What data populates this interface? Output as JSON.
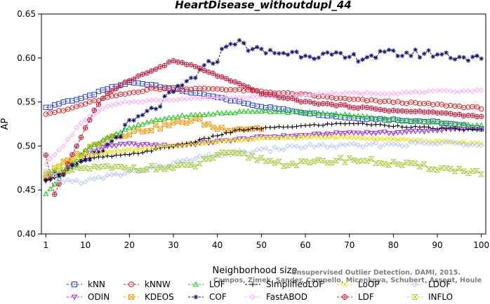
{
  "chart_data": {
    "type": "line",
    "title": "HeartDisease_withoutdupl_44",
    "xlabel": "Neighborhood size",
    "ylabel": "AP",
    "xlim": [
      0,
      101
    ],
    "ylim": [
      0.4,
      0.65
    ],
    "xticks": [
      1,
      10,
      20,
      30,
      40,
      50,
      60,
      70,
      80,
      90,
      100
    ],
    "yticks": [
      0.4,
      0.45,
      0.5,
      0.55,
      0.6,
      0.65
    ],
    "ytick_labels": [
      "0.40",
      "0.45",
      "0.50",
      "0.55",
      "0.60",
      "0.65"
    ],
    "legend_position": "bottom",
    "credit": "Campos, Zimek, Sander, Campello, Micenkova, Schubert, Assent, Houle: Unsupervised Outlier Detection. DAMI, 2015.",
    "credit_lines": [
      "Unsupervised Outlier Detection. DAMI, 2015.",
      "Campos, Zimek, Sander, Campello, Micenkova, Schubert, Assent, Houle"
    ],
    "series": [
      {
        "name": "kNN",
        "color": "#1f3fd6",
        "marker": "square",
        "knots": [
          [
            1,
            0.543
          ],
          [
            5,
            0.55
          ],
          [
            10,
            0.555
          ],
          [
            15,
            0.565
          ],
          [
            20,
            0.572
          ],
          [
            25,
            0.57
          ],
          [
            30,
            0.565
          ],
          [
            40,
            0.555
          ],
          [
            50,
            0.545
          ],
          [
            60,
            0.538
          ],
          [
            70,
            0.532
          ],
          [
            80,
            0.53
          ],
          [
            90,
            0.527
          ],
          [
            100,
            0.52
          ]
        ]
      },
      {
        "name": "ODIN",
        "color": "#9a28d8",
        "marker": "triangle-down",
        "knots": [
          [
            1,
            0.46
          ],
          [
            5,
            0.47
          ],
          [
            10,
            0.49
          ],
          [
            15,
            0.5
          ],
          [
            20,
            0.502
          ],
          [
            30,
            0.5
          ],
          [
            40,
            0.505
          ],
          [
            50,
            0.51
          ],
          [
            60,
            0.512
          ],
          [
            70,
            0.515
          ],
          [
            80,
            0.515
          ],
          [
            90,
            0.518
          ],
          [
            100,
            0.52
          ]
        ]
      },
      {
        "name": "kNNW",
        "color": "#e02020",
        "marker": "circle",
        "knots": [
          [
            1,
            0.537
          ],
          [
            5,
            0.54
          ],
          [
            10,
            0.548
          ],
          [
            15,
            0.555
          ],
          [
            20,
            0.56
          ],
          [
            25,
            0.565
          ],
          [
            30,
            0.565
          ],
          [
            40,
            0.565
          ],
          [
            50,
            0.562
          ],
          [
            60,
            0.558
          ],
          [
            70,
            0.553
          ],
          [
            80,
            0.55
          ],
          [
            90,
            0.547
          ],
          [
            100,
            0.543
          ]
        ]
      },
      {
        "name": "KDEOS",
        "color": "#f0a020",
        "marker": "square-x",
        "knots": [
          [
            1,
            0.465
          ],
          [
            5,
            0.48
          ],
          [
            10,
            0.495
          ],
          [
            15,
            0.51
          ],
          [
            20,
            0.515
          ],
          [
            25,
            0.52
          ],
          [
            30,
            0.525
          ],
          [
            35,
            0.53
          ],
          [
            40,
            0.52
          ],
          [
            45,
            0.52
          ],
          [
            50,
            0.52
          ]
        ]
      },
      {
        "name": "LOF",
        "color": "#22c422",
        "marker": "triangle",
        "knots": [
          [
            1,
            0.445
          ],
          [
            5,
            0.47
          ],
          [
            10,
            0.495
          ],
          [
            15,
            0.51
          ],
          [
            20,
            0.52
          ],
          [
            25,
            0.528
          ],
          [
            30,
            0.533
          ],
          [
            40,
            0.537
          ],
          [
            50,
            0.54
          ],
          [
            60,
            0.538
          ],
          [
            70,
            0.535
          ],
          [
            80,
            0.53
          ],
          [
            90,
            0.527
          ],
          [
            100,
            0.523
          ]
        ]
      },
      {
        "name": "COF",
        "color": "#101070",
        "marker": "asterisk",
        "knots": [
          [
            1,
            0.465
          ],
          [
            5,
            0.47
          ],
          [
            10,
            0.48
          ],
          [
            15,
            0.5
          ],
          [
            20,
            0.525
          ],
          [
            25,
            0.54
          ],
          [
            30,
            0.56
          ],
          [
            35,
            0.58
          ],
          [
            40,
            0.6
          ],
          [
            43,
            0.62
          ],
          [
            50,
            0.607
          ],
          [
            60,
            0.605
          ],
          [
            70,
            0.6
          ],
          [
            80,
            0.605
          ],
          [
            90,
            0.605
          ],
          [
            100,
            0.598
          ]
        ]
      },
      {
        "name": "SimplifiedLOF",
        "color": "#000000",
        "marker": "plus",
        "knots": [
          [
            1,
            0.46
          ],
          [
            5,
            0.47
          ],
          [
            10,
            0.485
          ],
          [
            15,
            0.488
          ],
          [
            20,
            0.49
          ],
          [
            25,
            0.495
          ],
          [
            30,
            0.5
          ],
          [
            35,
            0.505
          ],
          [
            40,
            0.512
          ],
          [
            45,
            0.518
          ],
          [
            50,
            0.52
          ],
          [
            60,
            0.523
          ],
          [
            70,
            0.526
          ],
          [
            80,
            0.523
          ],
          [
            90,
            0.52
          ],
          [
            100,
            0.518
          ]
        ]
      },
      {
        "name": "FastABOD",
        "color": "#f4b0f0",
        "marker": "diamond",
        "knots": [
          [
            1,
            0.48
          ],
          [
            5,
            0.5
          ],
          [
            8,
            0.52
          ],
          [
            10,
            0.53
          ],
          [
            15,
            0.545
          ],
          [
            20,
            0.55
          ],
          [
            30,
            0.553
          ],
          [
            40,
            0.555
          ],
          [
            50,
            0.556
          ],
          [
            60,
            0.558
          ],
          [
            70,
            0.56
          ],
          [
            80,
            0.56
          ],
          [
            90,
            0.562
          ],
          [
            100,
            0.563
          ]
        ]
      },
      {
        "name": "LoOP",
        "color": "#e8e000",
        "marker": "x",
        "knots": [
          [
            1,
            0.47
          ],
          [
            5,
            0.48
          ],
          [
            10,
            0.49
          ],
          [
            20,
            0.495
          ],
          [
            30,
            0.5
          ],
          [
            40,
            0.505
          ],
          [
            50,
            0.508
          ],
          [
            60,
            0.51
          ],
          [
            70,
            0.51
          ],
          [
            80,
            0.508
          ],
          [
            90,
            0.505
          ],
          [
            100,
            0.503
          ]
        ]
      },
      {
        "name": "LDF",
        "color": "#c02040",
        "marker": "circle-plus",
        "knots": [
          [
            1,
            0.49
          ],
          [
            3,
            0.445
          ],
          [
            5,
            0.47
          ],
          [
            8,
            0.5
          ],
          [
            10,
            0.52
          ],
          [
            12,
            0.54
          ],
          [
            15,
            0.56
          ],
          [
            20,
            0.575
          ],
          [
            25,
            0.585
          ],
          [
            30,
            0.597
          ],
          [
            35,
            0.59
          ],
          [
            40,
            0.58
          ],
          [
            45,
            0.57
          ],
          [
            50,
            0.56
          ],
          [
            60,
            0.55
          ],
          [
            70,
            0.545
          ],
          [
            80,
            0.54
          ],
          [
            90,
            0.538
          ],
          [
            100,
            0.533
          ]
        ]
      },
      {
        "name": "LDOF",
        "color": "#b8c8f0",
        "marker": "diamond",
        "knots": [
          [
            1,
            0.47
          ],
          [
            5,
            0.46
          ],
          [
            10,
            0.46
          ],
          [
            20,
            0.47
          ],
          [
            30,
            0.48
          ],
          [
            40,
            0.49
          ],
          [
            50,
            0.495
          ],
          [
            60,
            0.5
          ],
          [
            70,
            0.5
          ],
          [
            80,
            0.502
          ],
          [
            90,
            0.503
          ],
          [
            100,
            0.503
          ]
        ]
      },
      {
        "name": "INFLO",
        "color": "#a8cc40",
        "marker": "hourglass",
        "knots": [
          [
            1,
            0.47
          ],
          [
            5,
            0.47
          ],
          [
            10,
            0.475
          ],
          [
            15,
            0.475
          ],
          [
            20,
            0.475
          ],
          [
            30,
            0.475
          ],
          [
            35,
            0.478
          ],
          [
            40,
            0.49
          ],
          [
            45,
            0.49
          ],
          [
            50,
            0.485
          ],
          [
            55,
            0.48
          ],
          [
            60,
            0.48
          ],
          [
            70,
            0.485
          ],
          [
            80,
            0.48
          ],
          [
            90,
            0.475
          ],
          [
            100,
            0.47
          ]
        ]
      }
    ]
  }
}
